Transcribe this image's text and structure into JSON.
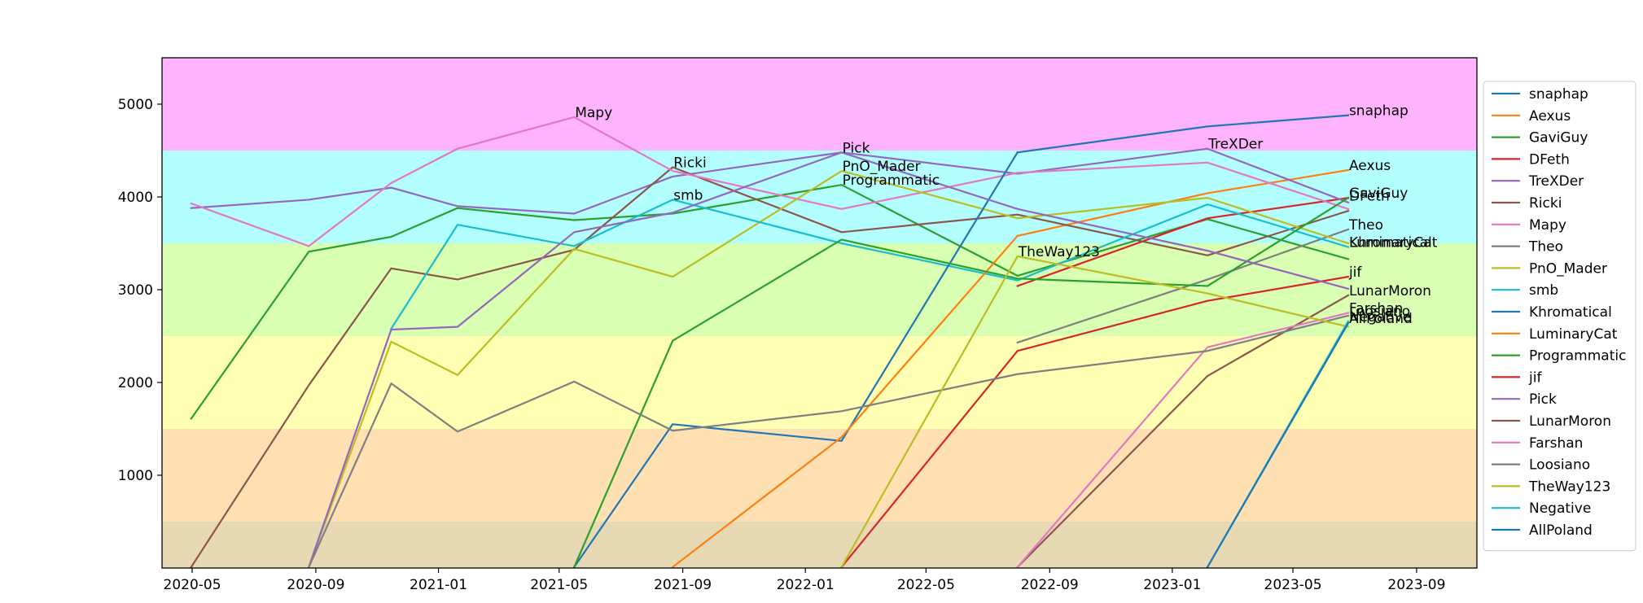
{
  "chart_data": {
    "type": "line",
    "title": "",
    "xlabel": "",
    "ylabel": "",
    "x_ticks": [
      "2020-05",
      "2020-09",
      "2021-01",
      "2021-05",
      "2021-09",
      "2022-01",
      "2022-05",
      "2022-09",
      "2023-01",
      "2023-05",
      "2023-09"
    ],
    "y_ticks": [
      1000,
      2000,
      3000,
      4000,
      5000
    ],
    "xlim": [
      "2020-04-01",
      "2023-10-31"
    ],
    "ylim": [
      0,
      5500
    ],
    "grid": false,
    "legend_position": "right",
    "bands": [
      {
        "from": 4500,
        "to": 5500,
        "color": "#ffb3ff"
      },
      {
        "from": 3500,
        "to": 4500,
        "color": "#b3ffff"
      },
      {
        "from": 2500,
        "to": 3500,
        "color": "#d9ffb3"
      },
      {
        "from": 1500,
        "to": 2500,
        "color": "#ffffb3"
      },
      {
        "from": 500,
        "to": 1500,
        "color": "#ffe0b3"
      },
      {
        "from": 0,
        "to": 500,
        "color": "#e8d9b5"
      }
    ],
    "series": [
      {
        "name": "snaphap",
        "color": "#1f77b4",
        "points": [
          [
            "2022-07-31",
            4480
          ],
          [
            "2023-02-05",
            4760
          ],
          [
            "2023-06-25",
            4880
          ]
        ]
      },
      {
        "name": "Aexus",
        "color": "#ff7f0e",
        "points": [
          [
            "2022-07-31",
            3580
          ],
          [
            "2023-02-05",
            4040
          ],
          [
            "2023-06-25",
            4290
          ]
        ]
      },
      {
        "name": "GaviGuy",
        "color": "#2ca02c",
        "points": [
          [
            "2020-04-30",
            1610
          ],
          [
            "2020-08-25",
            3410
          ],
          [
            "2020-11-15",
            3570
          ],
          [
            "2021-01-20",
            3880
          ],
          [
            "2021-05-16",
            3750
          ],
          [
            "2021-08-22",
            3820
          ],
          [
            "2022-02-06",
            4130
          ],
          [
            "2022-07-31",
            3150
          ],
          [
            "2023-02-05",
            3760
          ],
          [
            "2023-06-25",
            3330
          ]
        ]
      },
      {
        "name": "DFeth",
        "color": "#d62728",
        "points": [
          [
            "2022-07-31",
            3040
          ],
          [
            "2023-02-05",
            3770
          ],
          [
            "2023-06-25",
            3990
          ]
        ]
      },
      {
        "name": "TreXDer",
        "color": "#9467bd",
        "points": [
          [
            "2020-04-30",
            3880
          ],
          [
            "2020-08-25",
            3970
          ],
          [
            "2020-11-15",
            4100
          ],
          [
            "2021-01-20",
            3900
          ],
          [
            "2021-05-16",
            3820
          ],
          [
            "2021-08-22",
            4220
          ],
          [
            "2022-02-06",
            4480
          ],
          [
            "2022-07-31",
            4250
          ],
          [
            "2023-02-05",
            4520
          ],
          [
            "2023-06-25",
            3940
          ]
        ]
      },
      {
        "name": "Ricki",
        "color": "#8c564b",
        "points": [
          [
            "2020-04-30",
            10
          ],
          [
            "2020-08-25",
            1970
          ],
          [
            "2020-11-15",
            3230
          ],
          [
            "2021-01-20",
            3110
          ],
          [
            "2021-05-16",
            3430
          ],
          [
            "2021-08-22",
            4320
          ],
          [
            "2022-02-06",
            3620
          ],
          [
            "2022-07-31",
            3810
          ],
          [
            "2023-02-05",
            3370
          ],
          [
            "2023-06-25",
            3850
          ]
        ]
      },
      {
        "name": "Mapy",
        "color": "#e377c2",
        "points": [
          [
            "2020-04-30",
            3930
          ],
          [
            "2020-08-25",
            3470
          ],
          [
            "2020-11-15",
            4150
          ],
          [
            "2021-01-20",
            4520
          ],
          [
            "2021-05-16",
            4860
          ],
          [
            "2021-08-22",
            4280
          ],
          [
            "2022-02-06",
            3870
          ],
          [
            "2022-07-31",
            4260
          ],
          [
            "2023-02-05",
            4370
          ],
          [
            "2023-06-25",
            3870
          ]
        ]
      },
      {
        "name": "Theo",
        "color": "#7f7f7f",
        "points": [
          [
            "2022-07-31",
            2430
          ],
          [
            "2023-02-05",
            3110
          ],
          [
            "2023-06-25",
            3650
          ]
        ]
      },
      {
        "name": "PnO_Mader",
        "color": "#bcbd22",
        "points": [
          [
            "2020-08-25",
            10
          ],
          [
            "2020-11-15",
            2440
          ],
          [
            "2021-01-20",
            2080
          ],
          [
            "2021-05-16",
            3440
          ],
          [
            "2021-08-22",
            3140
          ],
          [
            "2022-02-06",
            4280
          ],
          [
            "2022-07-31",
            3770
          ],
          [
            "2023-02-05",
            3990
          ],
          [
            "2023-06-25",
            3500
          ]
        ]
      },
      {
        "name": "smb",
        "color": "#17becf",
        "points": [
          [
            "2020-11-15",
            2580
          ],
          [
            "2021-01-20",
            3700
          ],
          [
            "2021-05-16",
            3470
          ],
          [
            "2021-08-22",
            3970
          ],
          [
            "2022-02-06",
            3500
          ],
          [
            "2022-07-31",
            3100
          ],
          [
            "2023-02-05",
            3920
          ],
          [
            "2023-06-25",
            3460
          ]
        ]
      },
      {
        "name": "Khromatical",
        "color": "#1f77b4",
        "points": [
          [
            "2021-05-16",
            10
          ],
          [
            "2021-08-22",
            1550
          ],
          [
            "2022-02-06",
            1370
          ],
          [
            "2022-07-31",
            4480
          ]
        ]
      },
      {
        "name": "LuminaryCat",
        "color": "#ff7f0e",
        "points": [
          [
            "2021-08-22",
            10
          ],
          [
            "2022-02-06",
            1410
          ],
          [
            "2022-07-31",
            3580
          ]
        ]
      },
      {
        "name": "Programmatic",
        "color": "#2ca02c",
        "points": [
          [
            "2021-05-16",
            10
          ],
          [
            "2021-08-22",
            2450
          ],
          [
            "2022-02-06",
            3540
          ],
          [
            "2022-07-31",
            3120
          ],
          [
            "2023-02-05",
            3040
          ],
          [
            "2023-06-25",
            3990
          ]
        ]
      },
      {
        "name": "jif",
        "color": "#d62728",
        "points": [
          [
            "2022-02-06",
            10
          ],
          [
            "2022-07-31",
            2340
          ],
          [
            "2023-02-05",
            2880
          ],
          [
            "2023-06-25",
            3140
          ]
        ]
      },
      {
        "name": "Pick",
        "color": "#9467bd",
        "points": [
          [
            "2020-08-25",
            10
          ],
          [
            "2020-11-15",
            2570
          ],
          [
            "2021-01-20",
            2600
          ],
          [
            "2021-05-16",
            3620
          ],
          [
            "2021-08-22",
            3830
          ],
          [
            "2022-02-06",
            4480
          ],
          [
            "2022-07-31",
            3870
          ],
          [
            "2023-02-05",
            3420
          ],
          [
            "2023-06-25",
            3010
          ]
        ]
      },
      {
        "name": "LunarMoron",
        "color": "#8c564b",
        "points": [
          [
            "2022-07-31",
            10
          ],
          [
            "2023-02-05",
            2070
          ],
          [
            "2023-06-25",
            2940
          ]
        ]
      },
      {
        "name": "Farshan",
        "color": "#e377c2",
        "points": [
          [
            "2022-07-31",
            10
          ],
          [
            "2023-02-05",
            2380
          ],
          [
            "2023-06-25",
            2750
          ]
        ]
      },
      {
        "name": "Loosiano",
        "color": "#7f7f7f",
        "points": [
          [
            "2020-08-25",
            10
          ],
          [
            "2020-11-15",
            1990
          ],
          [
            "2021-01-20",
            1470
          ],
          [
            "2021-05-16",
            2010
          ],
          [
            "2021-08-22",
            1480
          ],
          [
            "2022-02-06",
            1690
          ],
          [
            "2022-07-31",
            2090
          ],
          [
            "2023-02-05",
            2340
          ],
          [
            "2023-06-25",
            2720
          ]
        ]
      },
      {
        "name": "TheWay123",
        "color": "#bcbd22",
        "points": [
          [
            "2022-02-06",
            10
          ],
          [
            "2022-07-31",
            3360
          ],
          [
            "2023-02-05",
            2960
          ],
          [
            "2023-06-25",
            2600
          ]
        ]
      },
      {
        "name": "Negative",
        "color": "#17becf",
        "points": [
          [
            "2023-02-05",
            10
          ],
          [
            "2023-06-25",
            2660
          ]
        ]
      },
      {
        "name": "AllPoland",
        "color": "#1f77b4",
        "points": [
          [
            "2023-02-05",
            10
          ],
          [
            "2023-06-25",
            2640
          ]
        ]
      }
    ],
    "annotations": [
      {
        "text": "snaphap",
        "x": "2023-06-25",
        "y": 4880
      },
      {
        "text": "Aexus",
        "x": "2023-06-25",
        "y": 4290
      },
      {
        "text": "GaviGuy",
        "x": "2023-06-25",
        "y": 3990
      },
      {
        "text": "DFeth",
        "x": "2023-06-25",
        "y": 3960
      },
      {
        "text": "TreXDer",
        "x": "2023-02-05",
        "y": 4520
      },
      {
        "text": "Ricki",
        "x": "2021-08-22",
        "y": 4320
      },
      {
        "text": "Mapy",
        "x": "2021-05-16",
        "y": 4860
      },
      {
        "text": "Theo",
        "x": "2023-06-25",
        "y": 3650
      },
      {
        "text": "PnO_Mader",
        "x": "2022-02-06",
        "y": 4280
      },
      {
        "text": "smb",
        "x": "2021-08-22",
        "y": 3970
      },
      {
        "text": "Khromatical",
        "x": "2023-06-25",
        "y": 3460
      },
      {
        "text": "LuminaryCat",
        "x": "2023-06-25",
        "y": 3460
      },
      {
        "text": "Programmatic",
        "x": "2022-02-06",
        "y": 4130
      },
      {
        "text": "jif",
        "x": "2023-06-25",
        "y": 3140
      },
      {
        "text": "Pick",
        "x": "2022-02-06",
        "y": 4480
      },
      {
        "text": "LunarMoron",
        "x": "2023-06-25",
        "y": 2940
      },
      {
        "text": "Farshan",
        "x": "2023-06-25",
        "y": 2750
      },
      {
        "text": "Loosiano",
        "x": "2023-06-25",
        "y": 2720
      },
      {
        "text": "TheWay123",
        "x": "2022-07-31",
        "y": 3360
      },
      {
        "text": "Negative",
        "x": "2023-06-25",
        "y": 2660
      },
      {
        "text": "AllPoland",
        "x": "2023-06-25",
        "y": 2640
      }
    ]
  }
}
